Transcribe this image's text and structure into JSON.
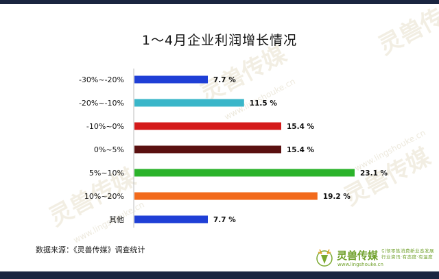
{
  "title": "1～4月企业利润增长情况",
  "source": "数据来源：《灵兽传媒》调查统计",
  "watermark": {
    "brand": "灵兽传媒",
    "url": "www.lingshouke.cn"
  },
  "logo": {
    "name": "灵兽传媒",
    "sub": "www.lingshouke.cn",
    "slogan": "引领零售消费新业态发展 行业资讯·有态度·有温度"
  },
  "chart_data": {
    "type": "bar",
    "orientation": "horizontal",
    "categories": [
      "-30%~-20%",
      "-20%~-10%",
      "-10%~0%",
      "0%~5%",
      "5%~10%",
      "10%~20%",
      "其他"
    ],
    "values": [
      7.7,
      11.5,
      15.4,
      15.4,
      23.1,
      19.2,
      7.7
    ],
    "value_labels": [
      "7.7 %",
      "11.5 %",
      "15.4 %",
      "15.4 %",
      "23.1 %",
      "19.2 %",
      "7.7 %"
    ],
    "colors": [
      "#1f3fd6",
      "#3ab6c9",
      "#d41a1a",
      "#5a1010",
      "#2bb32b",
      "#f26a1b",
      "#1f3fd6"
    ],
    "xlim": [
      0,
      23.1
    ],
    "grid": false
  }
}
